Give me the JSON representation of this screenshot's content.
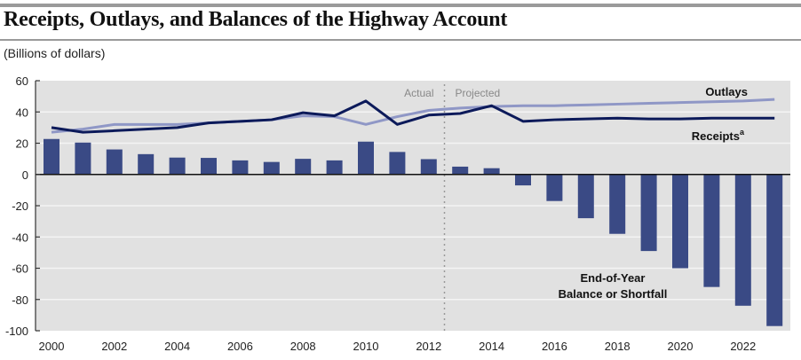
{
  "header": {
    "title": "Receipts, Outlays, and Balances of the Highway Account",
    "subtitle": "(Billions of dollars)"
  },
  "chart_data": {
    "type": "bar",
    "title": "Receipts, Outlays, and Balances of the Highway Account",
    "subtitle": "(Billions of dollars)",
    "xlabel": "",
    "ylabel": "Billions of dollars",
    "ylim": [
      -100,
      60
    ],
    "yticks": [
      60,
      40,
      20,
      0,
      -20,
      -40,
      -60,
      -80,
      -100
    ],
    "ytick_labels": [
      "60",
      "40",
      "20",
      "0",
      "-20",
      "-40",
      "-60",
      "-80",
      "-100"
    ],
    "x": [
      2000,
      2001,
      2002,
      2003,
      2004,
      2005,
      2006,
      2007,
      2008,
      2009,
      2010,
      2011,
      2012,
      2013,
      2014,
      2015,
      2016,
      2017,
      2018,
      2019,
      2020,
      2021,
      2022,
      2023
    ],
    "xtick_labels": [
      "2000",
      "2002",
      "2004",
      "2006",
      "2008",
      "2010",
      "2012",
      "2014",
      "2016",
      "2018",
      "2020",
      "2022"
    ],
    "grid": true,
    "series": [
      {
        "name": "End-of-Year Balance or Shortfall",
        "type": "bar",
        "color": "#3a4a85",
        "values": [
          22.7,
          20.4,
          16,
          13,
          10.8,
          10.6,
          9,
          8,
          10,
          9,
          21,
          14.4,
          9.8,
          5,
          4,
          -7,
          -17,
          -28,
          -38,
          -49,
          -60,
          -72,
          -84,
          -97
        ]
      },
      {
        "name": "Outlays",
        "type": "line",
        "color": "#8f97c6",
        "values": [
          27,
          29,
          32,
          32,
          32,
          33,
          34,
          35,
          37.5,
          37,
          32,
          37,
          41,
          42.5,
          43.5,
          44,
          44,
          44.5,
          45,
          45.5,
          46,
          46.5,
          47,
          48
        ]
      },
      {
        "name": "Receipts",
        "name_superscript": "a",
        "type": "line",
        "color": "#0c1a5a",
        "values": [
          30,
          27,
          28,
          29,
          30,
          33,
          34,
          35,
          39.5,
          37.5,
          47,
          32,
          38,
          39,
          44,
          34,
          35,
          35.5,
          36,
          35.5,
          35.5,
          36,
          36,
          36
        ]
      }
    ],
    "annotations": {
      "actual_label": "Actual",
      "projected_label": "Projected",
      "divider_after_year": 2012,
      "bar_label_line1": "End-of-Year",
      "bar_label_line2": "Balance or Shortfall",
      "outlays_label": "Outlays",
      "receipts_label": "Receipts",
      "receipts_superscript": "a"
    }
  }
}
